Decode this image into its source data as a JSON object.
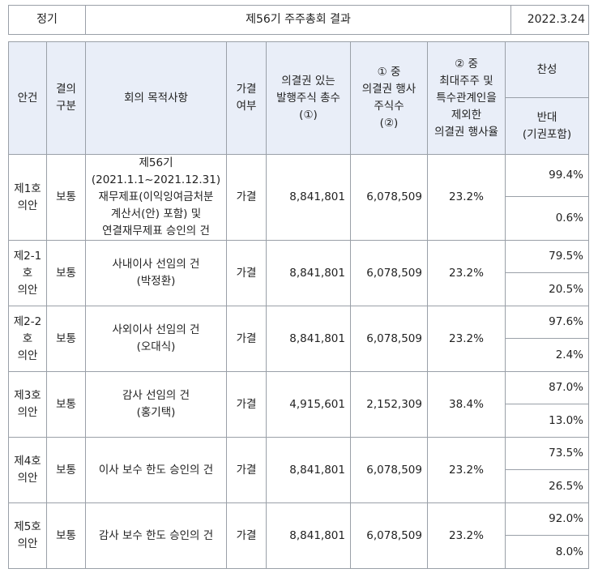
{
  "top": {
    "left": "정기",
    "title": "제56기 주주총회 결과",
    "date": "2022.3.24"
  },
  "header": {
    "item": "안건",
    "type": "결의\n구분",
    "purpose": "회의 목적사항",
    "passed": "가결\n여부",
    "total": "의결권 있는\n발행주식 총수\n(①)",
    "exercised": "① 중\n의결권 행사\n주식수\n(②)",
    "rate": "② 중\n최대주주 및\n특수관계인을\n제외한\n의결권 행사율",
    "approve": "찬성",
    "against": "반대\n(기권포함)"
  },
  "rows": [
    {
      "item": "제1호\n의안",
      "type": "보통",
      "purpose": "제56기\n(2021.1.1~2021.12.31)\n재무제표(이익잉여금처분\n계산서(안) 포함) 및\n연결재무제표 승인의 건",
      "passed": "가결",
      "total": "8,841,801",
      "exercised": "6,078,509",
      "rate": "23.2%",
      "approve": "99.4%",
      "against": "0.6%"
    },
    {
      "item": "제2-1\n호\n의안",
      "type": "보통",
      "purpose": "사내이사 선임의 건\n(박정환)",
      "passed": "가결",
      "total": "8,841,801",
      "exercised": "6,078,509",
      "rate": "23.2%",
      "approve": "79.5%",
      "against": "20.5%"
    },
    {
      "item": "제2-2\n호\n의안",
      "type": "보통",
      "purpose": "사외이사 선임의 건\n(오대식)",
      "passed": "가결",
      "total": "8,841,801",
      "exercised": "6,078,509",
      "rate": "23.2%",
      "approve": "97.6%",
      "against": "2.4%"
    },
    {
      "item": "제3호\n의안",
      "type": "보통",
      "purpose": "감사 선임의 건\n(홍기택)",
      "passed": "가결",
      "total": "4,915,601",
      "exercised": "2,152,309",
      "rate": "38.4%",
      "approve": "87.0%",
      "against": "13.0%"
    },
    {
      "item": "제4호\n의안",
      "type": "보통",
      "purpose": "이사 보수 한도 승인의 건",
      "passed": "가결",
      "total": "8,841,801",
      "exercised": "6,078,509",
      "rate": "23.2%",
      "approve": "73.5%",
      "against": "26.5%"
    },
    {
      "item": "제5호\n의안",
      "type": "보통",
      "purpose": "감사 보수 한도 승인의 건",
      "passed": "가결",
      "total": "8,841,801",
      "exercised": "6,078,509",
      "rate": "23.2%",
      "approve": "92.0%",
      "against": "8.0%"
    }
  ]
}
